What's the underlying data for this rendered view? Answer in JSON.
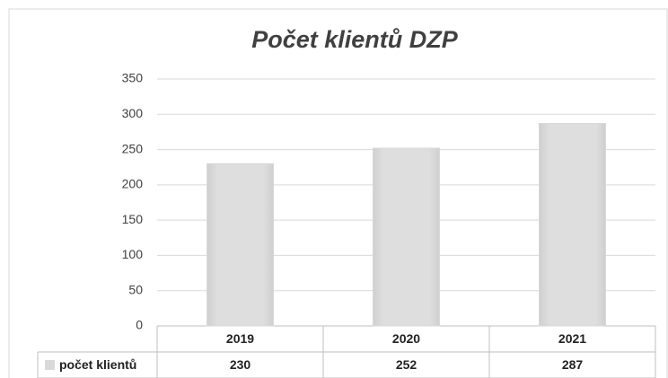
{
  "chart_data": {
    "type": "bar",
    "title": "Počet klientů DZP",
    "categories": [
      "2019",
      "2020",
      "2021"
    ],
    "series": [
      {
        "name": "počet klientů",
        "color": "#d9d9d9",
        "values": [
          230,
          252,
          287
        ]
      }
    ],
    "ylim": [
      0,
      350
    ],
    "yticks": [
      0,
      50,
      100,
      150,
      200,
      250,
      300,
      350
    ],
    "grid": true
  }
}
